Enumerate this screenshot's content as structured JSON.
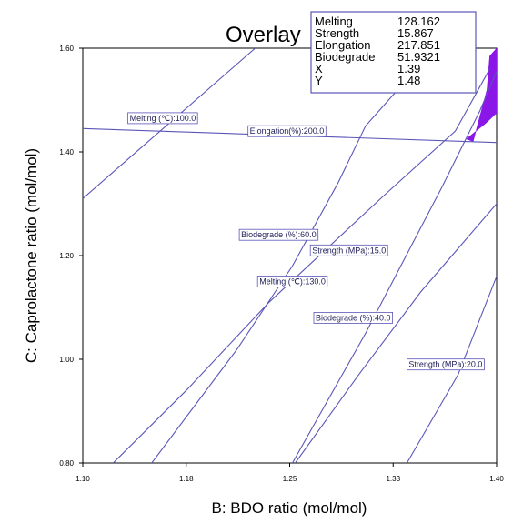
{
  "chart_data": {
    "type": "contour-overlay",
    "title": "Overlay",
    "xlabel": "B: BDO ratio (mol/mol)",
    "ylabel": "C: Caprolactone ratio (mol/mol)",
    "xlim": [
      1.1,
      1.4
    ],
    "ylim": [
      0.8,
      1.6
    ],
    "x_ticks": [
      "1.10",
      "1.18",
      "1.25",
      "1.33",
      "1.40"
    ],
    "y_ticks": [
      "0.80",
      "1.00",
      "1.20",
      "1.40",
      "1.60"
    ],
    "grid": false,
    "line_color": "#5a56b8",
    "region_color": "#8a17e8",
    "contours": [
      {
        "label": "Melting (℃):100.0",
        "points": [
          [
            1.1,
            1.31
          ],
          [
            1.225,
            1.6
          ]
        ],
        "label_at": [
          1.158,
          1.465
        ]
      },
      {
        "label": "Melting (℃):130.0",
        "points": [
          [
            1.15,
            0.8
          ],
          [
            1.212,
            1.02
          ],
          [
            1.252,
            1.18
          ],
          [
            1.285,
            1.34
          ],
          [
            1.305,
            1.45
          ],
          [
            1.355,
            1.6
          ]
        ],
        "label_at": [
          1.252,
          1.15
        ]
      },
      {
        "label": "Elongation(%):200.0",
        "points": [
          [
            1.1,
            1.445
          ],
          [
            1.4,
            1.418
          ]
        ],
        "label_at": [
          1.248,
          1.44
        ]
      },
      {
        "label": "Biodegrade (%):60.0",
        "points": [
          [
            1.122,
            0.8
          ],
          [
            1.175,
            0.94
          ],
          [
            1.235,
            1.11
          ],
          [
            1.32,
            1.32
          ],
          [
            1.37,
            1.44
          ],
          [
            1.395,
            1.56
          ]
        ],
        "label_at": [
          1.242,
          1.24
        ]
      },
      {
        "label": "Strength (MPa):15.0",
        "points": [
          [
            1.252,
            0.8
          ],
          [
            1.305,
            1.05
          ],
          [
            1.36,
            1.33
          ],
          [
            1.388,
            1.48
          ],
          [
            1.4,
            1.555
          ]
        ],
        "label_at": [
          1.293,
          1.21
        ]
      },
      {
        "label": "Biodegrade (%):40.0",
        "points": [
          [
            1.254,
            0.8
          ],
          [
            1.3,
            0.97
          ],
          [
            1.345,
            1.13
          ],
          [
            1.4,
            1.3
          ]
        ],
        "label_at": [
          1.296,
          1.08
        ]
      },
      {
        "label": "Strength (MPa):20.0",
        "points": [
          [
            1.335,
            0.8
          ],
          [
            1.372,
            0.97
          ],
          [
            1.4,
            1.16
          ]
        ],
        "label_at": [
          1.363,
          0.99
        ]
      }
    ],
    "feasible_region": [
      [
        1.383,
        1.42
      ],
      [
        1.393,
        1.52
      ],
      [
        1.395,
        1.585
      ],
      [
        1.4,
        1.6
      ],
      [
        1.4,
        1.475
      ],
      [
        1.392,
        1.455
      ],
      [
        1.378,
        1.425
      ]
    ],
    "info_box": [
      {
        "name": "Melting",
        "value": "128.162"
      },
      {
        "name": "Strength",
        "value": "15.867"
      },
      {
        "name": "Elongation",
        "value": "217.851"
      },
      {
        "name": "Biodegrade",
        "value": "51.9321"
      },
      {
        "name": "X",
        "value": "1.39"
      },
      {
        "name": "Y",
        "value": "1.48"
      }
    ]
  }
}
